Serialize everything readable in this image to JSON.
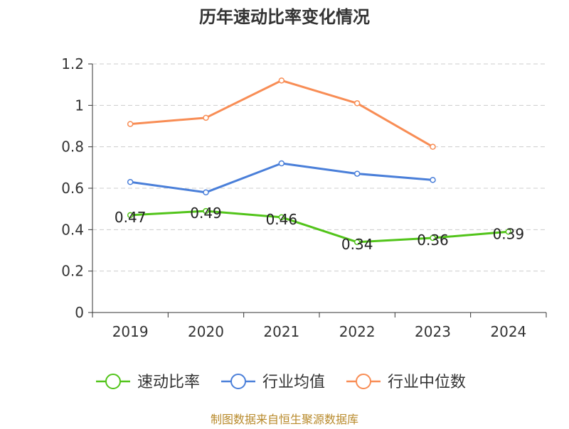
{
  "chart_data": {
    "type": "line",
    "title": "历年速动比率变化情况",
    "categories": [
      "2019",
      "2020",
      "2021",
      "2022",
      "2023",
      "2024"
    ],
    "ylim": [
      0,
      1.2
    ],
    "yticks": [
      "0",
      "0.2",
      "0.4",
      "0.6",
      "0.8",
      "1",
      "1.2"
    ],
    "grid": true,
    "legend_position": "bottom",
    "series": [
      {
        "name": "速动比率",
        "color": "#52c41a",
        "values": [
          0.47,
          0.49,
          0.46,
          0.34,
          0.36,
          0.39
        ],
        "labels": [
          "0.47",
          "0.49",
          "0.46",
          "0.34",
          "0.36",
          "0.39"
        ]
      },
      {
        "name": "行业均值",
        "color": "#4a7fd9",
        "values": [
          0.63,
          0.58,
          0.72,
          0.67,
          0.64,
          null
        ]
      },
      {
        "name": "行业中位数",
        "color": "#f88d55",
        "values": [
          0.91,
          0.94,
          1.12,
          1.01,
          0.8,
          null
        ]
      }
    ],
    "source": "制图数据来自恒生聚源数据库",
    "source_color": "#b88a2b"
  }
}
